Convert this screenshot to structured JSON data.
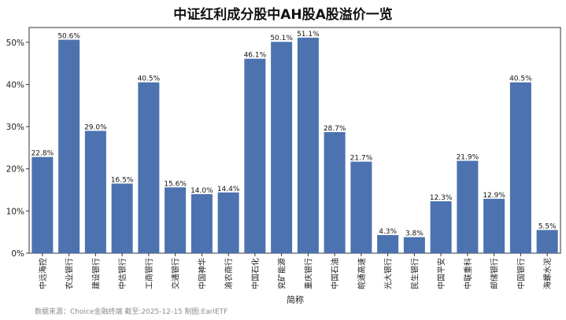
{
  "chart_data": {
    "type": "bar",
    "title": "中证红利成分股中AH股A股溢价一览",
    "xlabel": "简称",
    "ylabel": "",
    "categories": [
      "中远海控",
      "农业银行",
      "建设银行",
      "中信银行",
      "工商银行",
      "交通银行",
      "中国神华",
      "渝农商行",
      "中国石化",
      "兖矿能源",
      "重庆银行",
      "中国石油",
      "皖通高速",
      "光大银行",
      "民生银行",
      "中国平安",
      "中联重科",
      "邮储银行",
      "中国银行",
      "海螺水泥"
    ],
    "values": [
      22.8,
      50.6,
      29.0,
      16.5,
      40.5,
      15.6,
      14.0,
      14.4,
      46.1,
      50.1,
      51.1,
      28.7,
      21.7,
      4.3,
      3.8,
      12.3,
      21.9,
      12.9,
      40.5,
      5.5
    ],
    "value_labels": [
      "22.8%",
      "50.6%",
      "29.0%",
      "16.5%",
      "40.5%",
      "15.6%",
      "14.0%",
      "14.4%",
      "46.1%",
      "50.1%",
      "51.1%",
      "28.7%",
      "21.7%",
      "4.3%",
      "3.8%",
      "12.3%",
      "21.9%",
      "12.9%",
      "40.5%",
      "5.5%"
    ],
    "ylim": [
      0,
      53.5
    ],
    "yticks": [
      0,
      10,
      20,
      30,
      40,
      50
    ],
    "ytick_labels": [
      "0%",
      "10%",
      "20%",
      "30%",
      "40%",
      "50%"
    ],
    "grid": false,
    "bar_color": "#4c72b0"
  },
  "footer": {
    "source": "数据来源：Choice金融终端 截至:2025-12-15 制图:EarlETF"
  }
}
